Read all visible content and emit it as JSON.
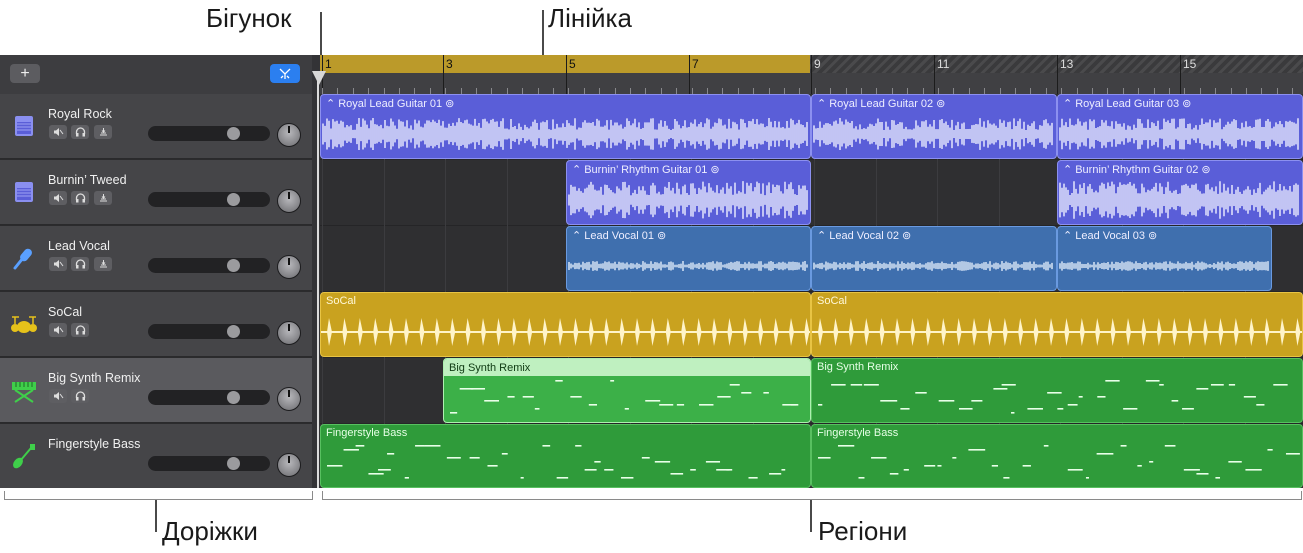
{
  "callouts": {
    "playhead": "Бігунок",
    "ruler": "Лінійка",
    "tracks": "Доріжки",
    "regions": "Регіони"
  },
  "header": {
    "add_label": "+"
  },
  "ruler": {
    "bars": [
      "1",
      "3",
      "5",
      "7",
      "9",
      "11",
      "13",
      "15"
    ]
  },
  "tracks": [
    {
      "name": "Royal Rock",
      "icon": "amp-icon",
      "color": "#8a8ff0"
    },
    {
      "name": "Burnin’ Tweed",
      "icon": "amp-icon",
      "color": "#8a8ff0"
    },
    {
      "name": "Lead Vocal",
      "icon": "microphone-icon",
      "color": "#5aa0ff"
    },
    {
      "name": "SoCal",
      "icon": "drum-kit-icon",
      "color": "#e6c21a"
    },
    {
      "name": "Big Synth Remix",
      "icon": "synth-keyboard-icon",
      "color": "#3fcf4a"
    },
    {
      "name": "Fingerstyle Bass",
      "icon": "bass-guitar-icon",
      "color": "#3fcf4a"
    }
  ],
  "regions": {
    "royal_rock": [
      "Royal Lead Guitar 01",
      "Royal Lead Guitar 02",
      "Royal Lead Guitar 03"
    ],
    "burnin_tweed": [
      "Burnin’ Rhythm Guitar 01",
      "Burnin’ Rhythm Guitar 02"
    ],
    "lead_vocal": [
      "Lead Vocal 01",
      "Lead Vocal 02",
      "Lead Vocal 03"
    ],
    "socal": [
      "SoCal",
      "SoCal"
    ],
    "big_synth": [
      "Big Synth Remix",
      "Big Synth Remix"
    ],
    "fingerstyle_bass": [
      "Fingerstyle Bass",
      "Fingerstyle Bass"
    ]
  }
}
